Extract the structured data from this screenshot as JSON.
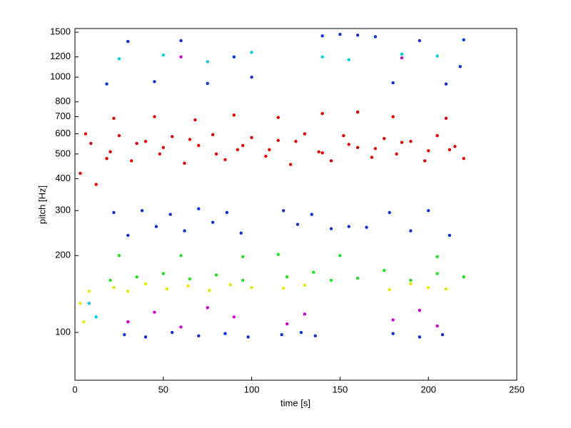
{
  "chart_data": {
    "type": "scatter",
    "xlabel": "time [s]",
    "ylabel": "pitch [Hz]",
    "xlim": [
      0,
      250
    ],
    "xticks": [
      0,
      50,
      100,
      150,
      200,
      250
    ],
    "ylim": [
      65,
      1550
    ],
    "yscale": "log",
    "yticks": [
      100,
      200,
      300,
      400,
      500,
      600,
      700,
      800,
      1000,
      1200,
      1500
    ],
    "series": [
      {
        "name": "red",
        "color": "#e00000",
        "x": [
          18,
          25,
          32,
          40,
          48,
          55,
          62,
          70,
          78,
          85,
          92,
          100,
          108,
          115,
          122,
          130,
          138,
          145,
          152,
          160,
          168,
          175,
          182,
          190,
          198,
          205,
          212,
          220,
          20,
          35,
          50,
          65,
          80,
          95,
          110,
          125,
          140,
          155,
          170,
          185,
          200,
          215,
          22,
          45,
          68,
          90,
          115,
          140,
          160,
          180,
          210,
          3,
          6,
          9,
          12
        ],
        "values": [
          480,
          590,
          470,
          560,
          500,
          585,
          460,
          540,
          595,
          475,
          520,
          580,
          490,
          565,
          455,
          600,
          510,
          470,
          590,
          530,
          485,
          575,
          500,
          560,
          470,
          590,
          520,
          480,
          510,
          550,
          530,
          570,
          500,
          540,
          520,
          560,
          505,
          545,
          525,
          555,
          515,
          535,
          690,
          700,
          680,
          710,
          695,
          720,
          730,
          700,
          690,
          420,
          600,
          550,
          380
        ]
      },
      {
        "name": "blue",
        "color": "#1030d0",
        "x": [
          22,
          30,
          38,
          46,
          54,
          62,
          70,
          78,
          86,
          94,
          118,
          126,
          134,
          145,
          155,
          165,
          178,
          190,
          200,
          212,
          28,
          40,
          55,
          70,
          85,
          98,
          117,
          128,
          136,
          180,
          195,
          208,
          18,
          30,
          45,
          60,
          75,
          90,
          100,
          140,
          150,
          160,
          170,
          180,
          195,
          210,
          218,
          220
        ],
        "values": [
          295,
          240,
          300,
          260,
          290,
          250,
          305,
          270,
          295,
          245,
          300,
          265,
          290,
          255,
          260,
          258,
          295,
          250,
          300,
          240,
          98,
          96,
          100,
          97,
          99,
          96,
          98,
          100,
          97,
          99,
          96,
          98,
          940,
          1380,
          960,
          1390,
          945,
          1200,
          1000,
          1450,
          1470,
          1460,
          1440,
          950,
          1390,
          940,
          1100,
          1400
        ]
      },
      {
        "name": "green",
        "color": "#20e020",
        "x": [
          20,
          35,
          50,
          65,
          80,
          95,
          120,
          135,
          145,
          160,
          175,
          190,
          205,
          220,
          25,
          60,
          95,
          115,
          150,
          205
        ],
        "values": [
          160,
          165,
          170,
          162,
          168,
          160,
          165,
          172,
          160,
          163,
          175,
          160,
          170,
          165,
          200,
          200,
          198,
          202,
          200,
          198
        ]
      },
      {
        "name": "yellow",
        "color": "#e8e800",
        "x": [
          22,
          30,
          40,
          52,
          64,
          76,
          88,
          100,
          118,
          130,
          178,
          190,
          200,
          210,
          3,
          5,
          8
        ],
        "values": [
          150,
          145,
          155,
          148,
          152,
          146,
          154,
          150,
          149,
          153,
          147,
          155,
          150,
          148,
          130,
          110,
          145
        ]
      },
      {
        "name": "magenta",
        "color": "#d000d0",
        "x": [
          30,
          45,
          60,
          75,
          90,
          120,
          130,
          180,
          195,
          205,
          60,
          185
        ],
        "values": [
          110,
          120,
          105,
          125,
          115,
          108,
          118,
          112,
          122,
          106,
          1200,
          1190
        ]
      },
      {
        "name": "cyan",
        "color": "#00d0e0",
        "x": [
          25,
          50,
          75,
          100,
          140,
          155,
          185,
          205,
          8,
          12
        ],
        "values": [
          1180,
          1220,
          1150,
          1250,
          1200,
          1170,
          1230,
          1210,
          130,
          115
        ]
      }
    ]
  }
}
